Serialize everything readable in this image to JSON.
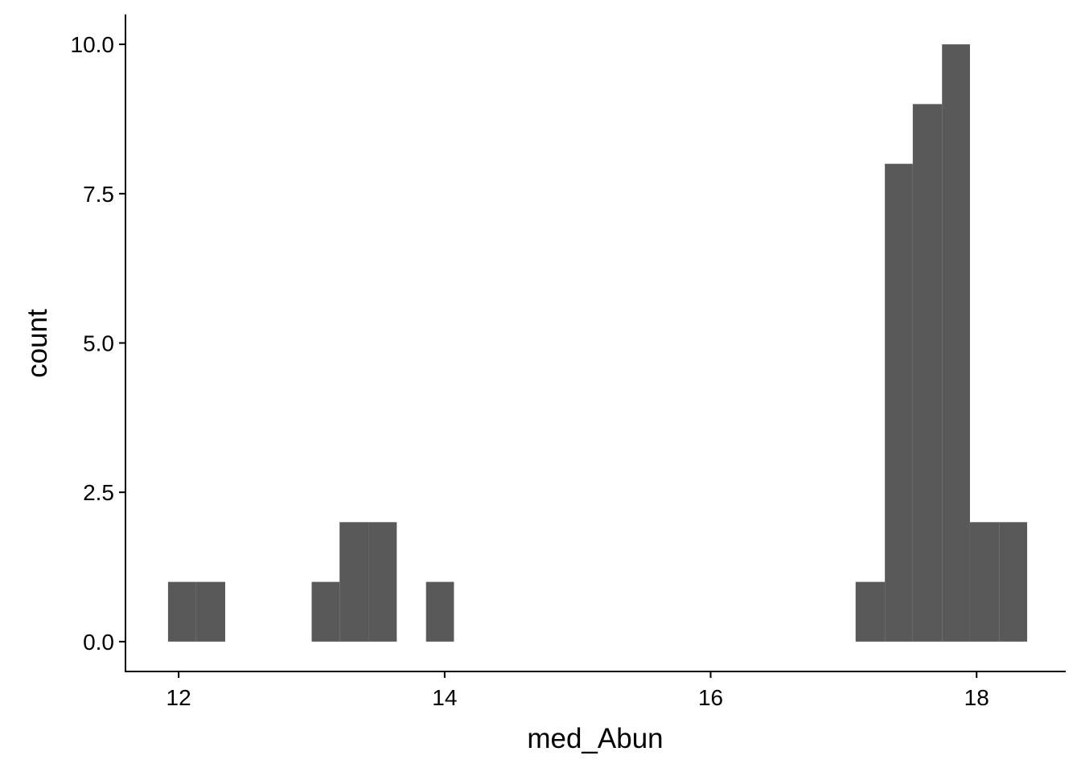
{
  "chart_data": {
    "type": "bar",
    "title": "",
    "xlabel": "med_Abun",
    "ylabel": "count",
    "bar_color": "#595959",
    "xlim": [
      11.6,
      18.67
    ],
    "ylim": [
      -0.5,
      10.5
    ],
    "x_ticks": [
      {
        "value": 12,
        "label": "12"
      },
      {
        "value": 14,
        "label": "14"
      },
      {
        "value": 16,
        "label": "16"
      },
      {
        "value": 18,
        "label": "18"
      }
    ],
    "y_ticks": [
      {
        "value": 0,
        "label": "0.0"
      },
      {
        "value": 2.5,
        "label": "2.5"
      },
      {
        "value": 5,
        "label": "5.0"
      },
      {
        "value": 7.5,
        "label": "7.5"
      },
      {
        "value": 10,
        "label": "10.0"
      }
    ],
    "bins": [
      {
        "start": 11.92,
        "end": 12.13,
        "count": 1
      },
      {
        "start": 12.13,
        "end": 12.35,
        "count": 1
      },
      {
        "start": 13.0,
        "end": 13.21,
        "count": 1
      },
      {
        "start": 13.21,
        "end": 13.43,
        "count": 2
      },
      {
        "start": 13.43,
        "end": 13.64,
        "count": 2
      },
      {
        "start": 13.86,
        "end": 14.07,
        "count": 1
      },
      {
        "start": 17.09,
        "end": 17.31,
        "count": 1
      },
      {
        "start": 17.31,
        "end": 17.52,
        "count": 8
      },
      {
        "start": 17.52,
        "end": 17.74,
        "count": 9
      },
      {
        "start": 17.74,
        "end": 17.95,
        "count": 10
      },
      {
        "start": 17.95,
        "end": 18.17,
        "count": 2
      },
      {
        "start": 18.17,
        "end": 18.38,
        "count": 2
      }
    ]
  }
}
